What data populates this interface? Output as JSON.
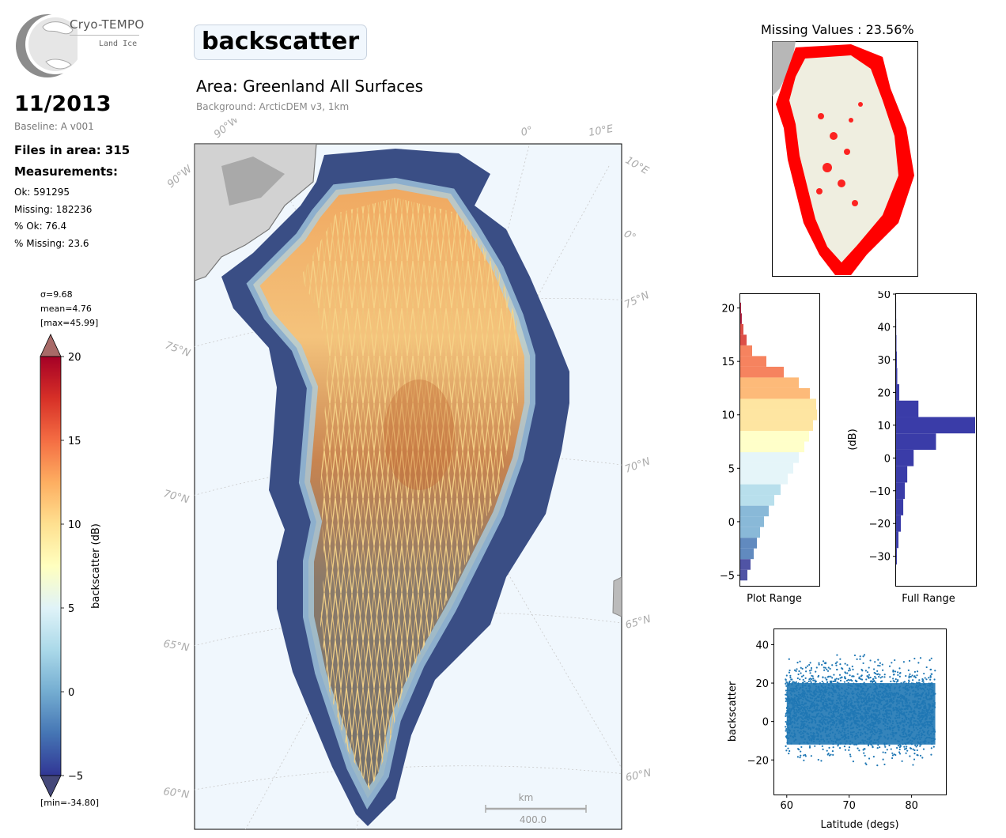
{
  "logo": {
    "line1": "Cryo-TEMPO",
    "line2": "Land Ice"
  },
  "header": {
    "date": "11/2013",
    "baseline": "Baseline: A v001",
    "parameter": "backscatter",
    "area": "Area: Greenland All Surfaces",
    "background": "Background: ArcticDEM v3, 1km"
  },
  "stats": {
    "files": "Files in area: 315",
    "measurements_label": "Measurements:",
    "ok": "Ok: 591295",
    "missing": "Missing: 182236",
    "pct_ok": "% Ok: 76.4",
    "pct_missing": "% Missing: 23.6"
  },
  "colorbar": {
    "sigma": "σ=9.68",
    "mean": "mean=4.76",
    "max": "[max=45.99]",
    "min": "[min=-34.80]",
    "label": "backscatter (dB)",
    "ticks": [
      "20",
      "15",
      "10",
      "5",
      "0",
      "−5"
    ],
    "colormap": [
      "#a50026",
      "#d73027",
      "#f46d43",
      "#fdae61",
      "#fee090",
      "#ffffbf",
      "#e0f3f8",
      "#abd9e9",
      "#74add1",
      "#4575b4",
      "#313695"
    ]
  },
  "map": {
    "lat_labels_left": [
      "75°N",
      "70°N",
      "65°N",
      "60°N"
    ],
    "lat_labels_right": [
      "75°N",
      "70°N",
      "65°N",
      "60°N"
    ],
    "lon_labels": [
      "90°W",
      "90°W",
      "0°",
      "10°E",
      "10°E",
      "0°"
    ],
    "scale_unit": "km",
    "scale_value": "400.0"
  },
  "missing_map": {
    "title": "Missing Values : 23.56%",
    "missing_color": "#ff0000",
    "land_color": "#efeee0"
  },
  "chart_data": [
    {
      "type": "bar",
      "name": "plot-range-histogram",
      "orientation": "horizontal",
      "xlabel": "Plot Range",
      "ylabel": "",
      "ylim": [
        -6,
        21.3
      ],
      "y_ticks": [
        "−5",
        "0",
        "5",
        "10",
        "15",
        "20"
      ],
      "x": [
        -5,
        -4,
        -3,
        -2,
        -1,
        0,
        1,
        2,
        3,
        4,
        5,
        6,
        7,
        8,
        9,
        10,
        11,
        12,
        13,
        14,
        15,
        16,
        17,
        18,
        19,
        20
      ],
      "values": [
        0.09,
        0.13,
        0.17,
        0.21,
        0.25,
        0.3,
        0.36,
        0.43,
        0.51,
        0.6,
        0.67,
        0.74,
        0.81,
        0.87,
        0.92,
        0.97,
        0.96,
        0.88,
        0.74,
        0.55,
        0.33,
        0.15,
        0.08,
        0.04,
        0.02,
        0.01
      ]
    },
    {
      "type": "bar",
      "name": "full-range-histogram",
      "orientation": "horizontal",
      "xlabel": "Full Range",
      "ylabel": "(dB)",
      "ylim": [
        -39,
        50
      ],
      "y_ticks": [
        "−30",
        "−20",
        "−10",
        "0",
        "10",
        "20",
        "30",
        "40",
        "50"
      ],
      "color": "#3a3ca8",
      "x": [
        -35,
        -30,
        -25,
        -20,
        -15,
        -10,
        -5,
        0,
        5,
        10,
        15,
        20,
        25,
        30,
        35,
        40,
        45
      ],
      "values": [
        0.0,
        0.01,
        0.03,
        0.06,
        0.09,
        0.11,
        0.14,
        0.22,
        0.5,
        0.99,
        0.28,
        0.04,
        0.015,
        0.01,
        0.005,
        0.002,
        0.001
      ]
    },
    {
      "type": "scatter",
      "name": "latitude-scatter",
      "xlabel": "Latitude (degs)",
      "ylabel": "backscatter",
      "xlim": [
        58,
        85.5
      ],
      "ylim": [
        -38,
        48
      ],
      "x_ticks": [
        "60",
        "70",
        "80"
      ],
      "y_ticks": [
        "−20",
        "0",
        "20",
        "40"
      ],
      "color": "#1f77b4",
      "x_range": [
        59.8,
        83.8
      ],
      "y_range": [
        -34.8,
        45.99
      ]
    }
  ]
}
